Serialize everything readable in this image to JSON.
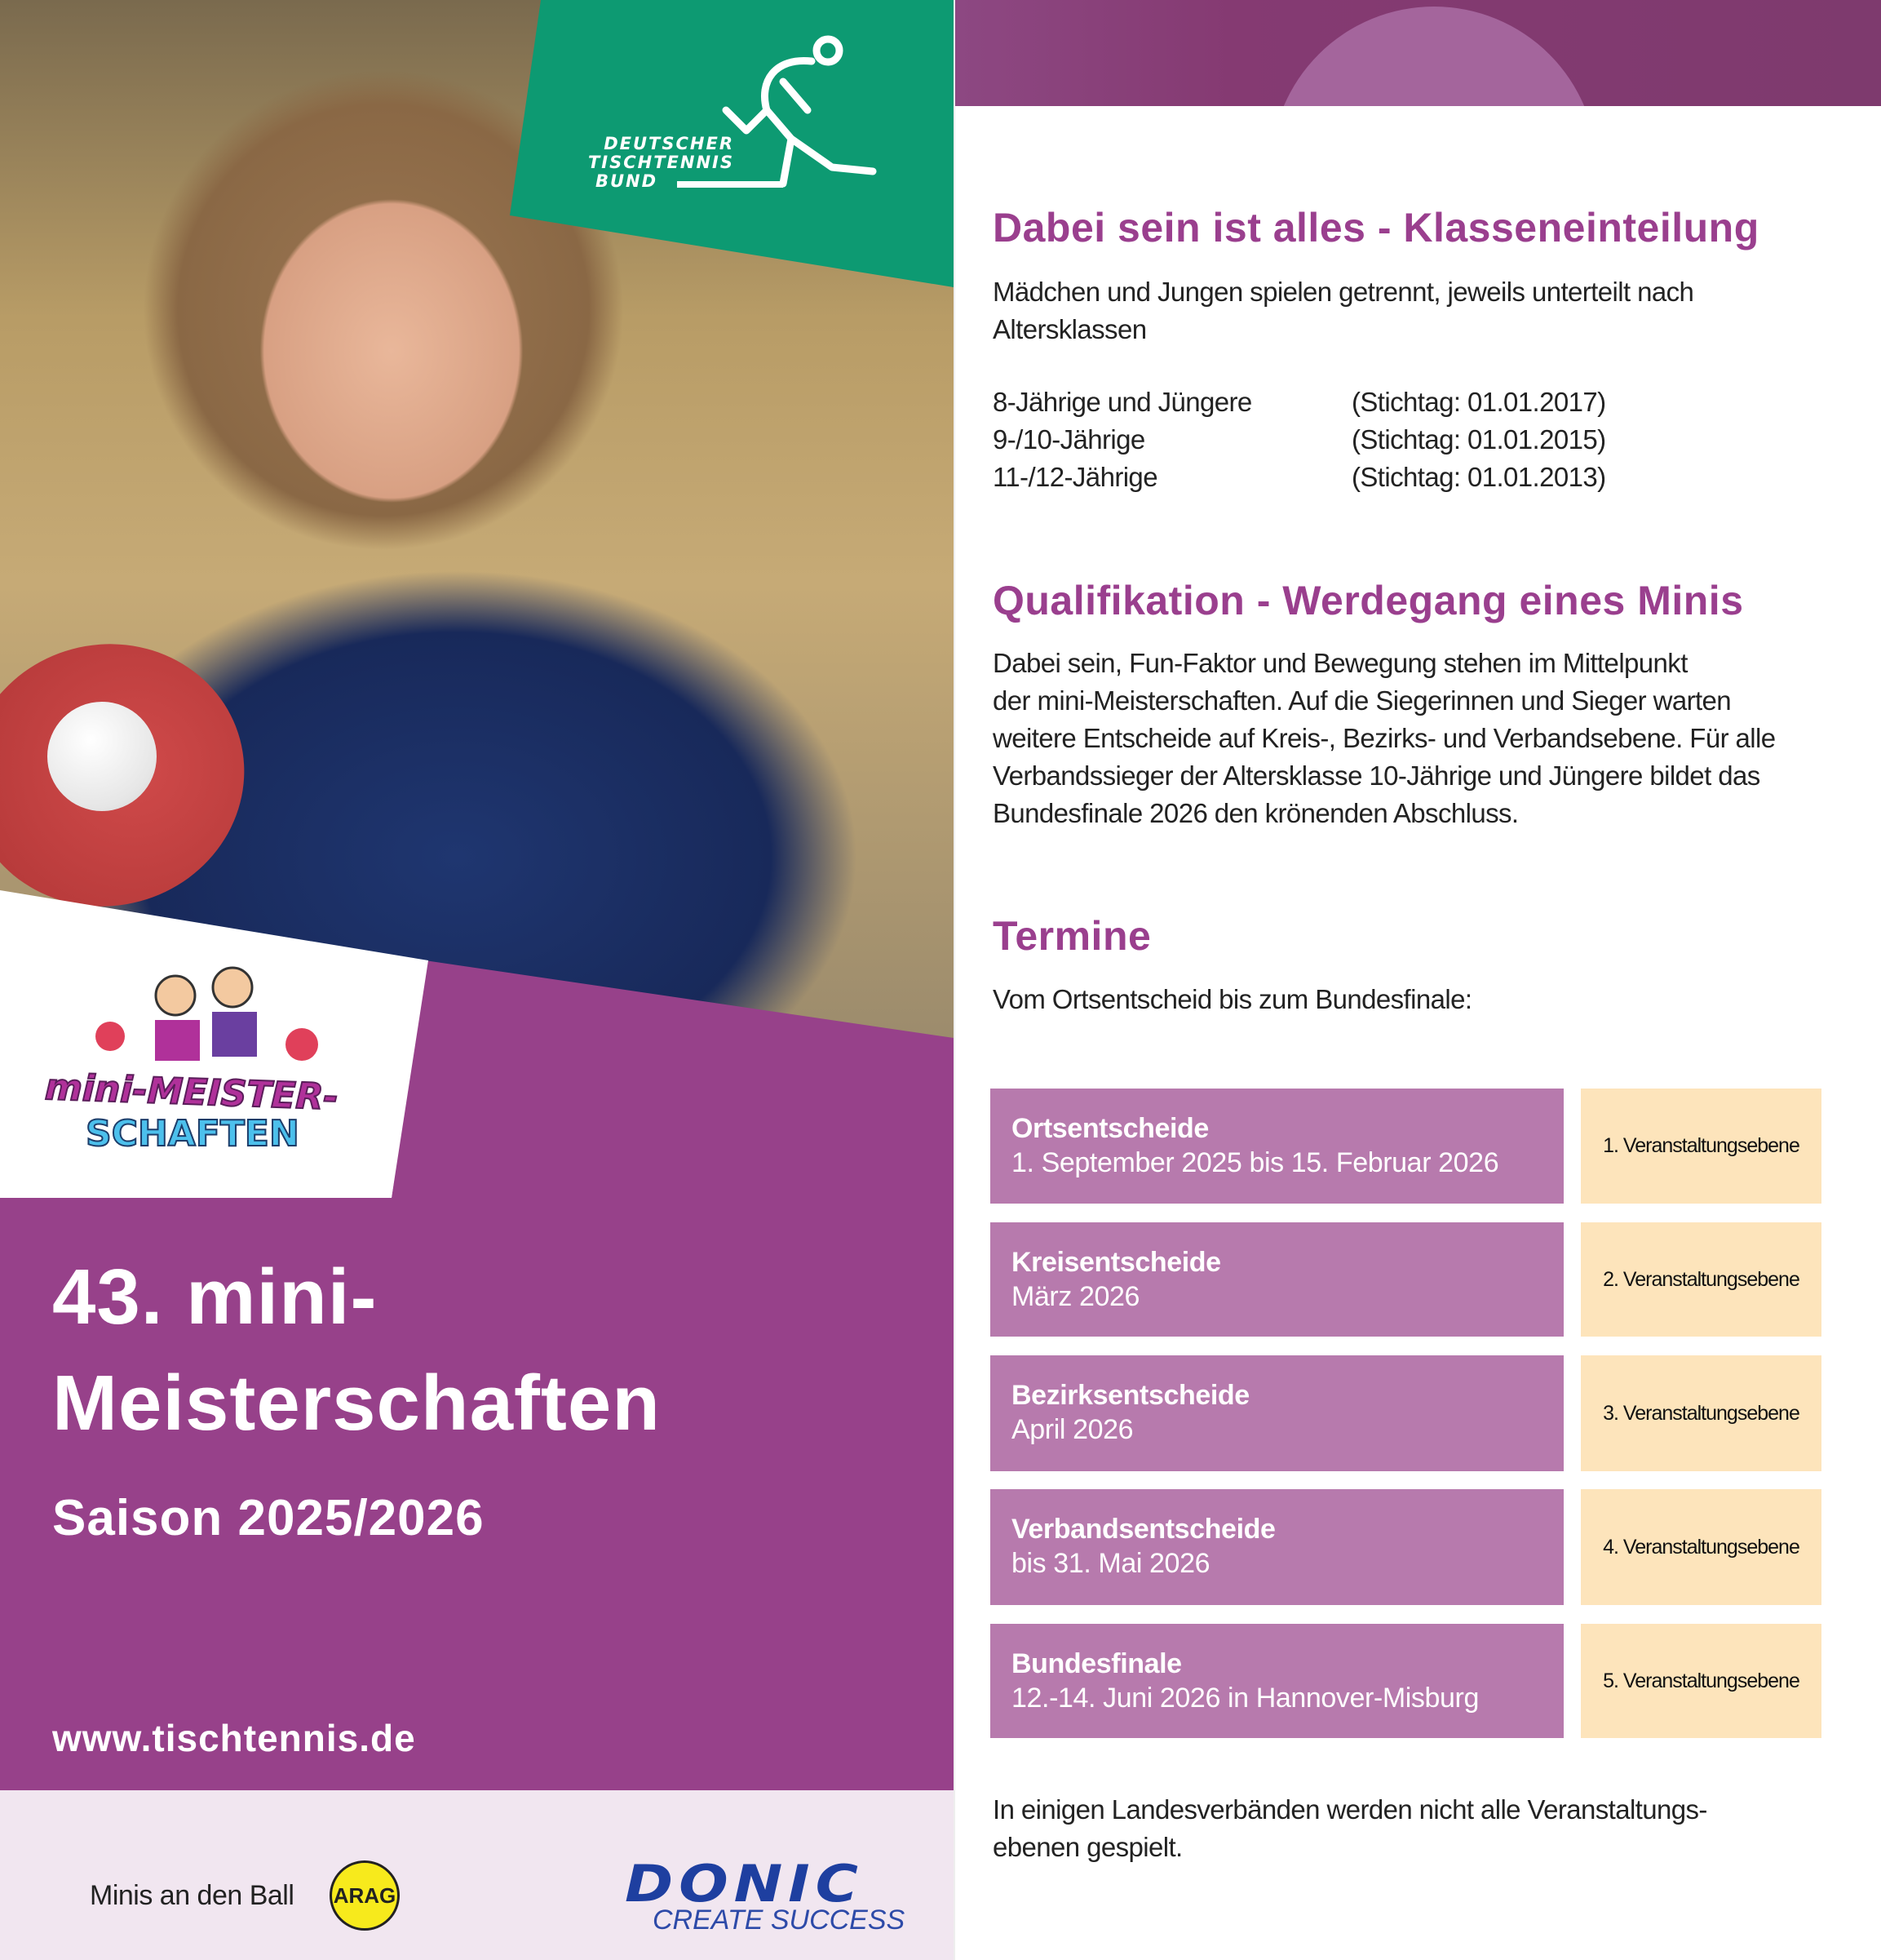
{
  "cover": {
    "org_logo": {
      "line1": "DEUTSCHER",
      "line2": "TISCHTENNIS",
      "line3": "BUND"
    },
    "event_logo": {
      "line1": "mini-MEISTER-",
      "line2": "SCHAFTEN"
    },
    "title_line1": "43. mini-",
    "title_line2": "Meisterschaften",
    "season": "Saison 2025/2026",
    "website": "www.tischtennis.de",
    "sponsors": {
      "slogan": "Minis an den Ball",
      "arag": "ARAG",
      "donic": "DONIC",
      "donic_tagline": "CREATE SUCCESS"
    }
  },
  "colors": {
    "purple": "#97418a",
    "heading": "#9a3f8e",
    "box": "#b77aad",
    "level": "#fde4bb",
    "green": "#0d9a72"
  },
  "sections": {
    "klassen": {
      "heading": "Dabei sein ist alles - Klasseneinteilung",
      "intro_line1": "Mädchen und Jungen spielen getrennt, jeweils unterteilt nach",
      "intro_line2": "Altersklassen",
      "classes": [
        {
          "age": "8-Jährige und Jüngere",
          "cutoff": "(Stichtag: 01.01.2017)"
        },
        {
          "age": "9-/10-Jährige",
          "cutoff": "(Stichtag: 01.01.2015)"
        },
        {
          "age": "11-/12-Jährige",
          "cutoff": "(Stichtag: 01.01.2013)"
        }
      ]
    },
    "qualifikation": {
      "heading": "Qualifikation - Werdegang eines Minis",
      "lines": [
        "Dabei sein, Fun-Faktor und Bewegung stehen im Mittelpunkt",
        "der mini-Meisterschaften. Auf die Siegerinnen und Sieger warten",
        "weitere Entscheide auf Kreis-, Bezirks- und Verbandsebene. Für alle",
        "Verbandssieger der Altersklasse 10-Jährige und Jüngere bildet das",
        "Bundesfinale 2026 den krönenden Abschluss."
      ]
    },
    "termine": {
      "heading": "Termine",
      "intro": "Vom Ortsentscheid bis zum Bundesfinale:",
      "rounds": [
        {
          "name": "Ortsentscheide",
          "date": "1. September 2025 bis 15. Februar 2026",
          "level": "1. Veranstaltungsebene"
        },
        {
          "name": "Kreisentscheide",
          "date": "März 2026",
          "level": "2. Veranstaltungsebene"
        },
        {
          "name": "Bezirksentscheide",
          "date": "April 2026",
          "level": "3. Veranstaltungsebene"
        },
        {
          "name": "Verbandsentscheide",
          "date": "bis 31. Mai 2026",
          "level": "4. Veranstaltungsebene"
        },
        {
          "name": "Bundesfinale",
          "date": "12.-14. Juni 2026 in Hannover-Misburg",
          "level": "5. Veranstaltungsebene"
        }
      ],
      "note_line1": "In einigen Landesverbänden werden nicht alle Veranstaltungs-",
      "note_line2": "ebenen gespielt."
    }
  }
}
